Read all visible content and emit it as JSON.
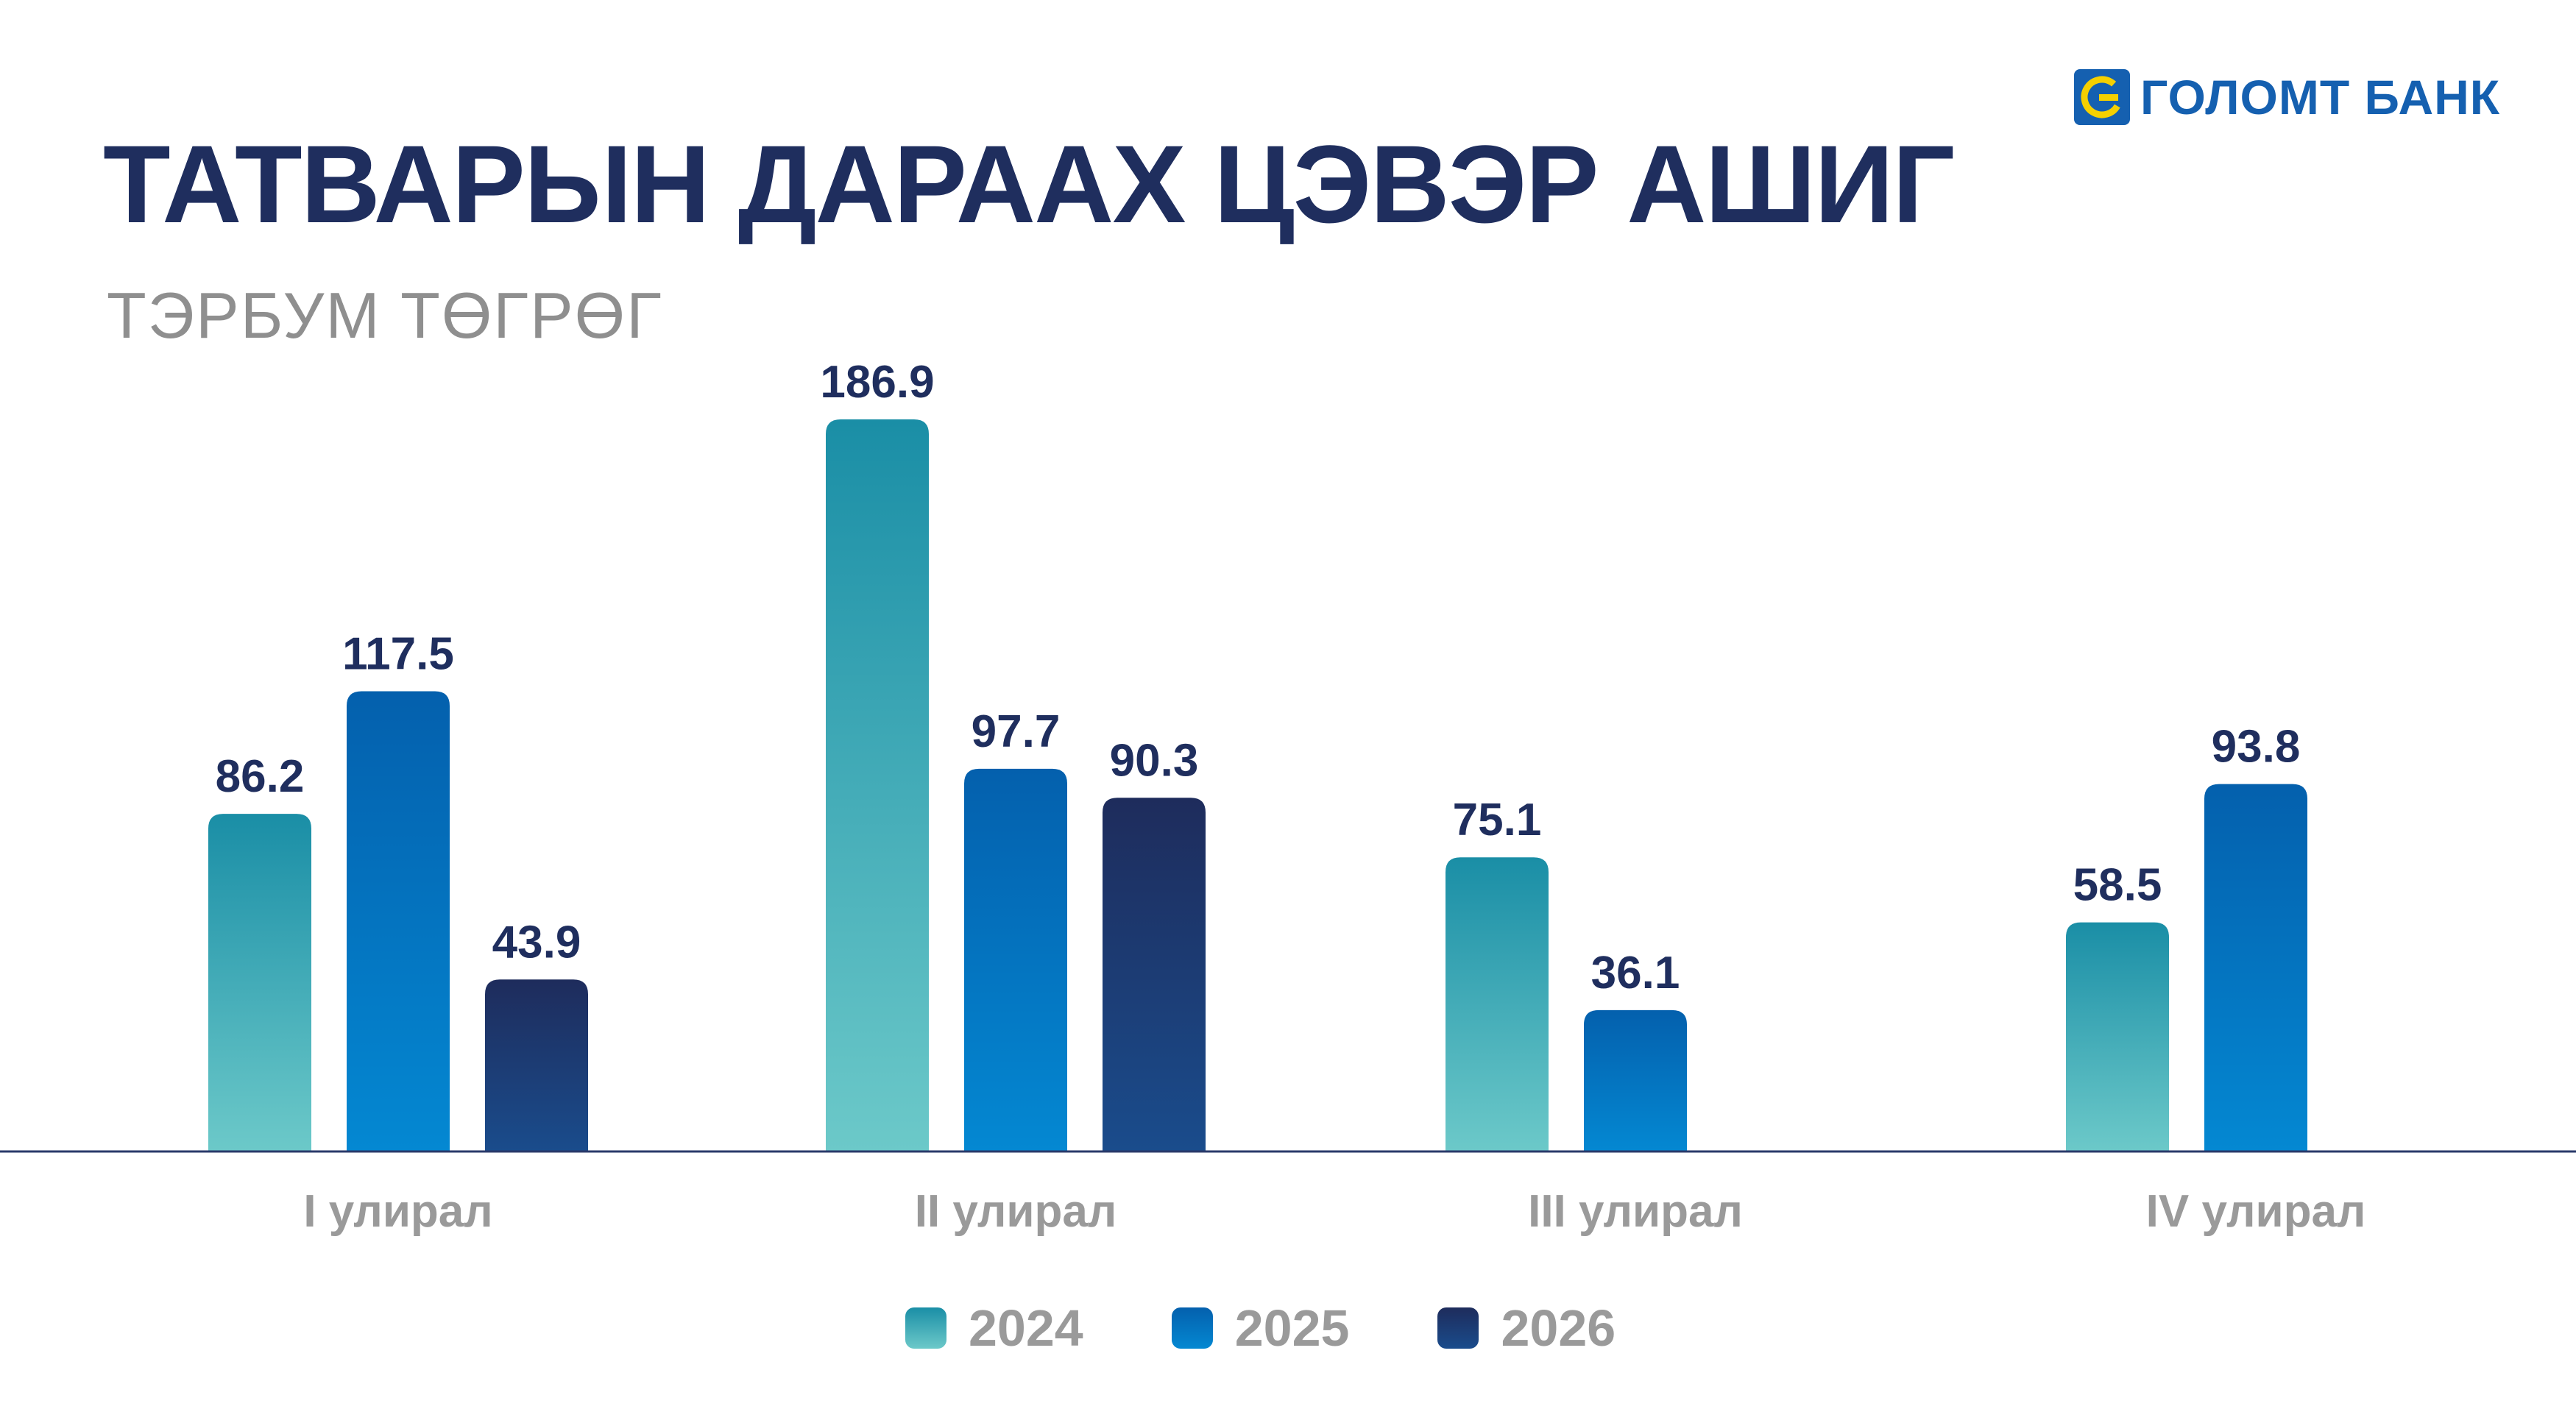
{
  "header": {
    "title": "ТАТВАРЫН ДАРААХ ЦЭВЭР АШИГ",
    "subtitle": "ТЭРБУМ ТӨГРӨГ"
  },
  "brand": {
    "name": "ГОЛОМТ БАНК",
    "logo_icon": "golomt-logo-icon",
    "colors": {
      "blue": "#1560b0",
      "yellow": "#f5d000"
    }
  },
  "chart_data": {
    "type": "bar",
    "title": "ТАТВАРЫН ДАРААХ ЦЭВЭР АШИГ",
    "subtitle": "ТЭРБУМ ТӨГРӨГ",
    "categories": [
      "I улирал",
      "II улирал",
      "III улирал",
      "IV улирал"
    ],
    "series": [
      {
        "name": "2024",
        "values": [
          86.2,
          186.9,
          75.1,
          58.5
        ],
        "color_top": "#1a8ea6",
        "color_bottom": "#6cc9c9"
      },
      {
        "name": "2025",
        "values": [
          117.5,
          97.7,
          36.1,
          93.8
        ],
        "color_top": "#0460ad",
        "color_bottom": "#0488d2"
      },
      {
        "name": "2026",
        "values": [
          43.9,
          90.3,
          null,
          null
        ],
        "color_top": "#1e2c5c",
        "color_bottom": "#1a4c8c"
      }
    ],
    "ylim": [
      0,
      186.9
    ],
    "grid": false,
    "legend_position": "bottom-center",
    "data_labels": true
  }
}
